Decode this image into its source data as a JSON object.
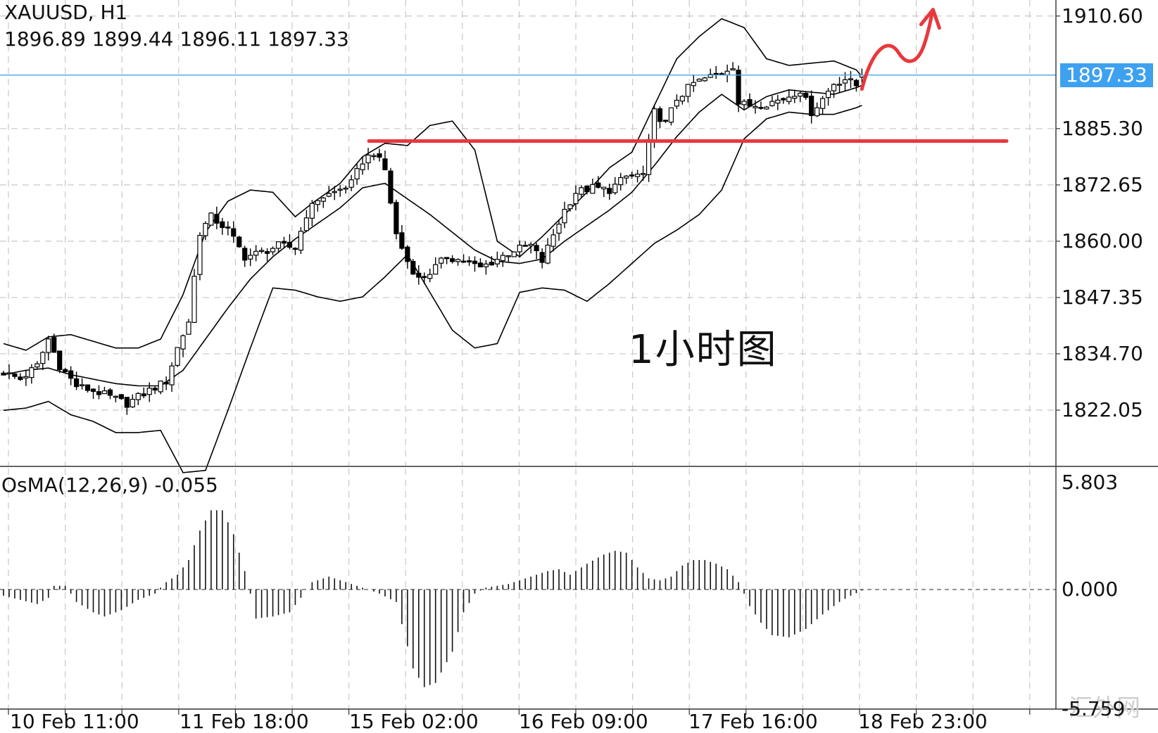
{
  "header": {
    "symbol_timeframe": "XAUUSD, H1",
    "ohlc": "1896.89 1899.44 1896.11 1897.33"
  },
  "indicator": {
    "label": "OsMA(12,26,9) -0.055",
    "ticks": [
      "5.803",
      "0.000",
      "-5.759"
    ]
  },
  "annotation": {
    "text": "1小时图"
  },
  "watermark": "汇外网",
  "colors": {
    "grid": "#c8c8c8",
    "candles": "#000000",
    "bands": "#000000",
    "current_price_line": "#4aa3e8",
    "price_tag_bg": "#3ea1f0",
    "support_line": "#e8383d",
    "arrow": "#e8383d"
  },
  "chart_data": [
    {
      "type": "candlestick",
      "title": "XAUUSD, H1",
      "x_ticks": [
        "10 Feb 11:00",
        "11 Feb 18:00",
        "15 Feb 02:00",
        "16 Feb 09:00",
        "17 Feb 16:00",
        "18 Feb 23:00"
      ],
      "y_ticks": [
        "1910.60",
        "1885.30",
        "1872.65",
        "1860.00",
        "1847.35",
        "1834.70",
        "1822.05"
      ],
      "ylim": [
        1809.4,
        1914.2
      ],
      "last_price": 1897.33,
      "last_price_label": "1897.33",
      "support_level": 1882.5,
      "indicator": "Bollinger Bands",
      "price_path": [
        [
          0,
          1830.5
        ],
        [
          3,
          1829.0
        ],
        [
          6,
          1832.0
        ],
        [
          8,
          1838.0
        ],
        [
          10,
          1832.0
        ],
        [
          13,
          1827.5
        ],
        [
          17,
          1826.0
        ],
        [
          22,
          1823.5
        ],
        [
          26,
          1826.5
        ],
        [
          29,
          1828.5
        ],
        [
          31,
          1836.0
        ],
        [
          33,
          1842.0
        ],
        [
          35,
          1862.0
        ],
        [
          37,
          1865.5
        ],
        [
          40,
          1862.5
        ],
        [
          43,
          1856.5
        ],
        [
          46,
          1857.5
        ],
        [
          49,
          1859.0
        ],
        [
          52,
          1858.5
        ],
        [
          54,
          1866.0
        ],
        [
          56,
          1869.5
        ],
        [
          59,
          1871.0
        ],
        [
          62,
          1873.0
        ],
        [
          64,
          1878.0
        ],
        [
          66,
          1880.0
        ],
        [
          68,
          1876.0
        ],
        [
          70,
          1861.5
        ],
        [
          72,
          1855.5
        ],
        [
          74,
          1851.5
        ],
        [
          76,
          1853.0
        ],
        [
          79,
          1856.5
        ],
        [
          82,
          1855.5
        ],
        [
          85,
          1854.0
        ],
        [
          88,
          1856.0
        ],
        [
          91,
          1858.0
        ],
        [
          94,
          1859.0
        ],
        [
          96,
          1855.5
        ],
        [
          98,
          1861.5
        ],
        [
          100,
          1867.0
        ],
        [
          102,
          1871.0
        ],
        [
          105,
          1872.0
        ],
        [
          108,
          1871.5
        ],
        [
          111,
          1874.5
        ],
        [
          114,
          1875.0
        ],
        [
          116,
          1889.0
        ],
        [
          118,
          1886.5
        ],
        [
          120,
          1892.0
        ],
        [
          123,
          1895.5
        ],
        [
          126,
          1897.0
        ],
        [
          128,
          1898.0
        ],
        [
          130,
          1899.5
        ],
        [
          131,
          1891.0
        ],
        [
          133,
          1890.5
        ],
        [
          136,
          1891.0
        ],
        [
          139,
          1892.0
        ],
        [
          142,
          1894.0
        ],
        [
          144,
          1889.0
        ],
        [
          146,
          1892.0
        ],
        [
          148,
          1895.5
        ],
        [
          150,
          1896.5
        ],
        [
          152,
          1895.0
        ],
        [
          153,
          1897.33
        ]
      ],
      "bollinger_path": {
        "upper": [
          [
            0,
            1837.0
          ],
          [
            4,
            1835.5
          ],
          [
            8,
            1838.5
          ],
          [
            12,
            1839.0
          ],
          [
            16,
            1837.5
          ],
          [
            20,
            1836.0
          ],
          [
            24,
            1836.0
          ],
          [
            28,
            1838.0
          ],
          [
            32,
            1848.0
          ],
          [
            36,
            1862.0
          ],
          [
            40,
            1869.0
          ],
          [
            44,
            1871.5
          ],
          [
            48,
            1871.0
          ],
          [
            52,
            1865.5
          ],
          [
            55,
            1868.5
          ],
          [
            60,
            1873.0
          ],
          [
            64,
            1879.0
          ],
          [
            68,
            1882.0
          ],
          [
            72,
            1881.5
          ],
          [
            76,
            1886.0
          ],
          [
            80,
            1887.0
          ],
          [
            84,
            1880.5
          ],
          [
            88,
            1860.0
          ],
          [
            92,
            1856.5
          ],
          [
            96,
            1861.0
          ],
          [
            100,
            1866.0
          ],
          [
            104,
            1871.0
          ],
          [
            108,
            1876.5
          ],
          [
            112,
            1880.0
          ],
          [
            116,
            1890.5
          ],
          [
            120,
            1901.0
          ],
          [
            124,
            1906.0
          ],
          [
            128,
            1910.0
          ],
          [
            132,
            1908.0
          ],
          [
            136,
            1901.0
          ],
          [
            140,
            1899.5
          ],
          [
            144,
            1900.0
          ],
          [
            148,
            1900.5
          ],
          [
            152,
            1898.5
          ],
          [
            153,
            1897.0
          ]
        ],
        "middle": [
          [
            0,
            1830.0
          ],
          [
            4,
            1831.0
          ],
          [
            8,
            1831.5
          ],
          [
            12,
            1830.0
          ],
          [
            16,
            1829.0
          ],
          [
            20,
            1828.0
          ],
          [
            24,
            1827.5
          ],
          [
            28,
            1827.5
          ],
          [
            32,
            1831.0
          ],
          [
            36,
            1838.0
          ],
          [
            40,
            1845.0
          ],
          [
            44,
            1851.5
          ],
          [
            48,
            1856.5
          ],
          [
            52,
            1860.5
          ],
          [
            56,
            1864.0
          ],
          [
            60,
            1867.5
          ],
          [
            64,
            1872.0
          ],
          [
            68,
            1873.0
          ],
          [
            72,
            1869.5
          ],
          [
            76,
            1866.0
          ],
          [
            80,
            1862.0
          ],
          [
            84,
            1858.0
          ],
          [
            88,
            1855.5
          ],
          [
            92,
            1855.0
          ],
          [
            96,
            1856.0
          ],
          [
            100,
            1860.0
          ],
          [
            104,
            1863.5
          ],
          [
            108,
            1867.0
          ],
          [
            112,
            1871.0
          ],
          [
            116,
            1877.0
          ],
          [
            120,
            1883.5
          ],
          [
            124,
            1889.0
          ],
          [
            128,
            1893.0
          ],
          [
            132,
            1889.5
          ],
          [
            136,
            1892.5
          ],
          [
            140,
            1894.0
          ],
          [
            144,
            1893.5
          ],
          [
            148,
            1893.0
          ],
          [
            152,
            1894.5
          ],
          [
            153,
            1895.0
          ]
        ],
        "lower": [
          [
            0,
            1822.0
          ],
          [
            4,
            1822.5
          ],
          [
            8,
            1824.0
          ],
          [
            12,
            1821.0
          ],
          [
            16,
            1819.5
          ],
          [
            20,
            1817.0
          ],
          [
            24,
            1817.0
          ],
          [
            28,
            1817.5
          ],
          [
            32,
            1808.0
          ],
          [
            36,
            1808.5
          ],
          [
            40,
            1822.0
          ],
          [
            44,
            1836.0
          ],
          [
            48,
            1849.5
          ],
          [
            52,
            1849.0
          ],
          [
            56,
            1847.5
          ],
          [
            60,
            1846.5
          ],
          [
            64,
            1847.5
          ],
          [
            68,
            1852.0
          ],
          [
            72,
            1857.0
          ],
          [
            76,
            1848.5
          ],
          [
            80,
            1840.0
          ],
          [
            84,
            1836.0
          ],
          [
            88,
            1837.0
          ],
          [
            92,
            1848.5
          ],
          [
            96,
            1849.5
          ],
          [
            100,
            1849.0
          ],
          [
            104,
            1846.5
          ],
          [
            108,
            1850.5
          ],
          [
            112,
            1855.0
          ],
          [
            116,
            1859.5
          ],
          [
            120,
            1862.5
          ],
          [
            124,
            1866.0
          ],
          [
            128,
            1871.5
          ],
          [
            132,
            1883.0
          ],
          [
            136,
            1887.5
          ],
          [
            140,
            1889.0
          ],
          [
            144,
            1888.5
          ],
          [
            148,
            1888.5
          ],
          [
            152,
            1890.0
          ],
          [
            153,
            1890.5
          ]
        ]
      }
    },
    {
      "type": "bar",
      "title": "OsMA(12,26,9) -0.055",
      "ylim": [
        -5.759,
        5.803
      ],
      "y_ticks": [
        "5.803",
        "0.000",
        "-5.759"
      ],
      "zero_line": 0.0,
      "histogram_path": [
        [
          0,
          -0.3
        ],
        [
          3,
          -0.5
        ],
        [
          6,
          -0.7
        ],
        [
          8,
          -0.4
        ],
        [
          9,
          0.2
        ],
        [
          11,
          0.2
        ],
        [
          13,
          -0.6
        ],
        [
          16,
          -1.1
        ],
        [
          18,
          -1.3
        ],
        [
          21,
          -1.0
        ],
        [
          24,
          -0.5
        ],
        [
          27,
          -0.2
        ],
        [
          29,
          0.4
        ],
        [
          31,
          0.8
        ],
        [
          33,
          1.6
        ],
        [
          35,
          3.2
        ],
        [
          37,
          4.3
        ],
        [
          39,
          4.3
        ],
        [
          41,
          3.0
        ],
        [
          43,
          1.0
        ],
        [
          45,
          -1.4
        ],
        [
          48,
          -1.3
        ],
        [
          51,
          -1.1
        ],
        [
          53,
          -0.4
        ],
        [
          55,
          0.4
        ],
        [
          58,
          0.7
        ],
        [
          61,
          0.4
        ],
        [
          64,
          0.1
        ],
        [
          67,
          -0.2
        ],
        [
          70,
          -0.6
        ],
        [
          73,
          -3.8
        ],
        [
          75,
          -4.7
        ],
        [
          77,
          -4.5
        ],
        [
          80,
          -3.0
        ],
        [
          82,
          -1.1
        ],
        [
          84,
          -0.2
        ],
        [
          86,
          0.1
        ],
        [
          88,
          0.2
        ],
        [
          90,
          0.3
        ],
        [
          94,
          0.7
        ],
        [
          97,
          1.0
        ],
        [
          99,
          1.1
        ],
        [
          101,
          0.8
        ],
        [
          104,
          1.4
        ],
        [
          107,
          1.9
        ],
        [
          109,
          2.1
        ],
        [
          111,
          2.0
        ],
        [
          113,
          1.2
        ],
        [
          115,
          0.6
        ],
        [
          117,
          0.5
        ],
        [
          119,
          0.7
        ],
        [
          121,
          1.3
        ],
        [
          123,
          1.6
        ],
        [
          125,
          1.6
        ],
        [
          127,
          1.4
        ],
        [
          129,
          1.1
        ],
        [
          131,
          0.4
        ],
        [
          133,
          -0.8
        ],
        [
          135,
          -1.6
        ],
        [
          137,
          -2.2
        ],
        [
          140,
          -2.3
        ],
        [
          143,
          -1.9
        ],
        [
          146,
          -1.2
        ],
        [
          149,
          -0.6
        ],
        [
          151,
          -0.3
        ],
        [
          153,
          -0.055
        ]
      ]
    }
  ]
}
